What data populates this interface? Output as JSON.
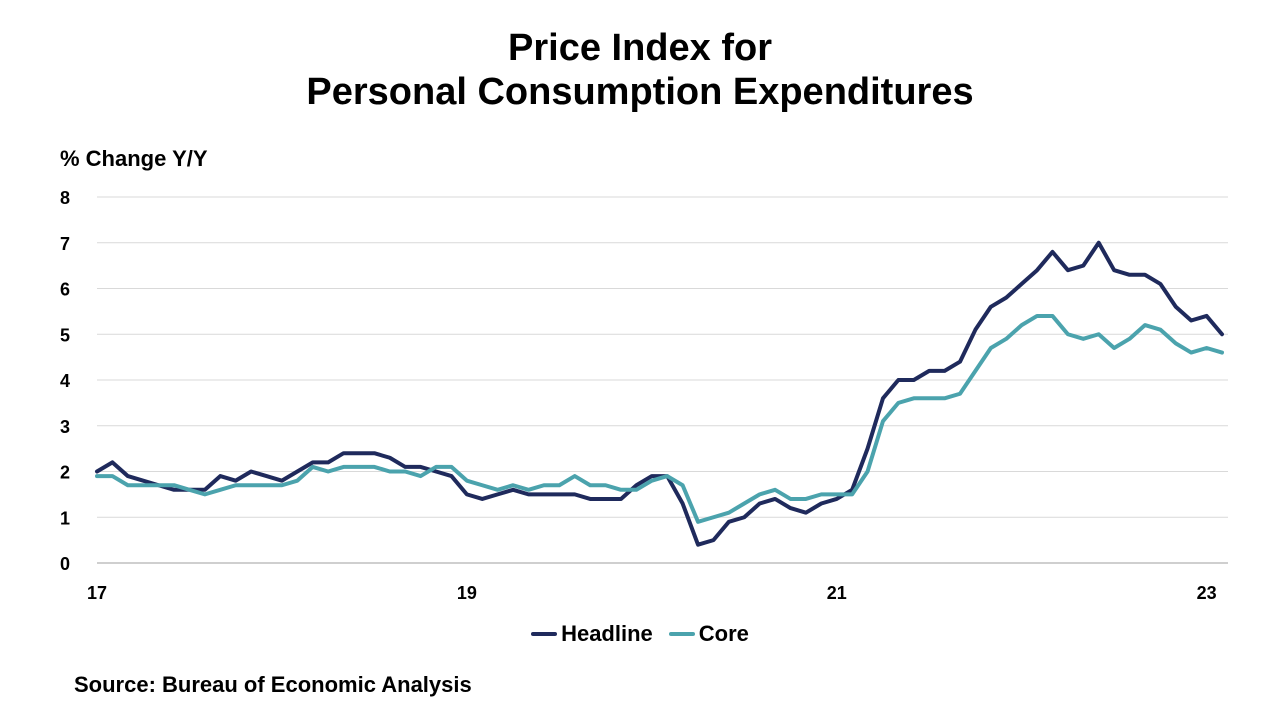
{
  "chart_data": {
    "type": "line",
    "title_line1": "Price Index for",
    "title_line2": "Personal Consumption Expenditures",
    "ylabel": "% Change Y/Y",
    "xlabel": "",
    "source": "Source: Bureau of Economic Analysis",
    "ylim": [
      0,
      8
    ],
    "yticks": [
      "0",
      "1",
      "2",
      "3",
      "4",
      "5",
      "6",
      "7",
      "8"
    ],
    "xticks": [
      {
        "label": "17",
        "month_index": 0
      },
      {
        "label": "19",
        "month_index": 24
      },
      {
        "label": "21",
        "month_index": 48
      },
      {
        "label": "23",
        "month_index": 72
      }
    ],
    "x_period": "monthly, Jan 2017 - Feb 2023",
    "grid": true,
    "legend_position": "bottom",
    "series": [
      {
        "name": "Headline",
        "color": "#1f2a5c",
        "values": [
          2.0,
          2.2,
          1.9,
          1.8,
          1.7,
          1.6,
          1.6,
          1.6,
          1.9,
          1.8,
          2.0,
          1.9,
          1.8,
          2.0,
          2.2,
          2.2,
          2.4,
          2.4,
          2.4,
          2.3,
          2.1,
          2.1,
          2.0,
          1.9,
          1.5,
          1.4,
          1.5,
          1.6,
          1.5,
          1.5,
          1.5,
          1.5,
          1.4,
          1.4,
          1.4,
          1.7,
          1.9,
          1.9,
          1.3,
          0.4,
          0.5,
          0.9,
          1.0,
          1.3,
          1.4,
          1.2,
          1.1,
          1.3,
          1.4,
          1.6,
          2.5,
          3.6,
          4.0,
          4.0,
          4.2,
          4.2,
          4.4,
          5.1,
          5.6,
          5.8,
          6.1,
          6.4,
          6.8,
          6.4,
          6.5,
          7.0,
          6.4,
          6.3,
          6.3,
          6.1,
          5.6,
          5.3,
          5.4,
          5.0
        ]
      },
      {
        "name": "Core",
        "color": "#4ba3ad",
        "values": [
          1.9,
          1.9,
          1.7,
          1.7,
          1.7,
          1.7,
          1.6,
          1.5,
          1.6,
          1.7,
          1.7,
          1.7,
          1.7,
          1.8,
          2.1,
          2.0,
          2.1,
          2.1,
          2.1,
          2.0,
          2.0,
          1.9,
          2.1,
          2.1,
          1.8,
          1.7,
          1.6,
          1.7,
          1.6,
          1.7,
          1.7,
          1.9,
          1.7,
          1.7,
          1.6,
          1.6,
          1.8,
          1.9,
          1.7,
          0.9,
          1.0,
          1.1,
          1.3,
          1.5,
          1.6,
          1.4,
          1.4,
          1.5,
          1.5,
          1.5,
          2.0,
          3.1,
          3.5,
          3.6,
          3.6,
          3.6,
          3.7,
          4.2,
          4.7,
          4.9,
          5.2,
          5.4,
          5.4,
          5.0,
          4.9,
          5.0,
          4.7,
          4.9,
          5.2,
          5.1,
          4.8,
          4.6,
          4.7,
          4.6
        ]
      }
    ]
  }
}
